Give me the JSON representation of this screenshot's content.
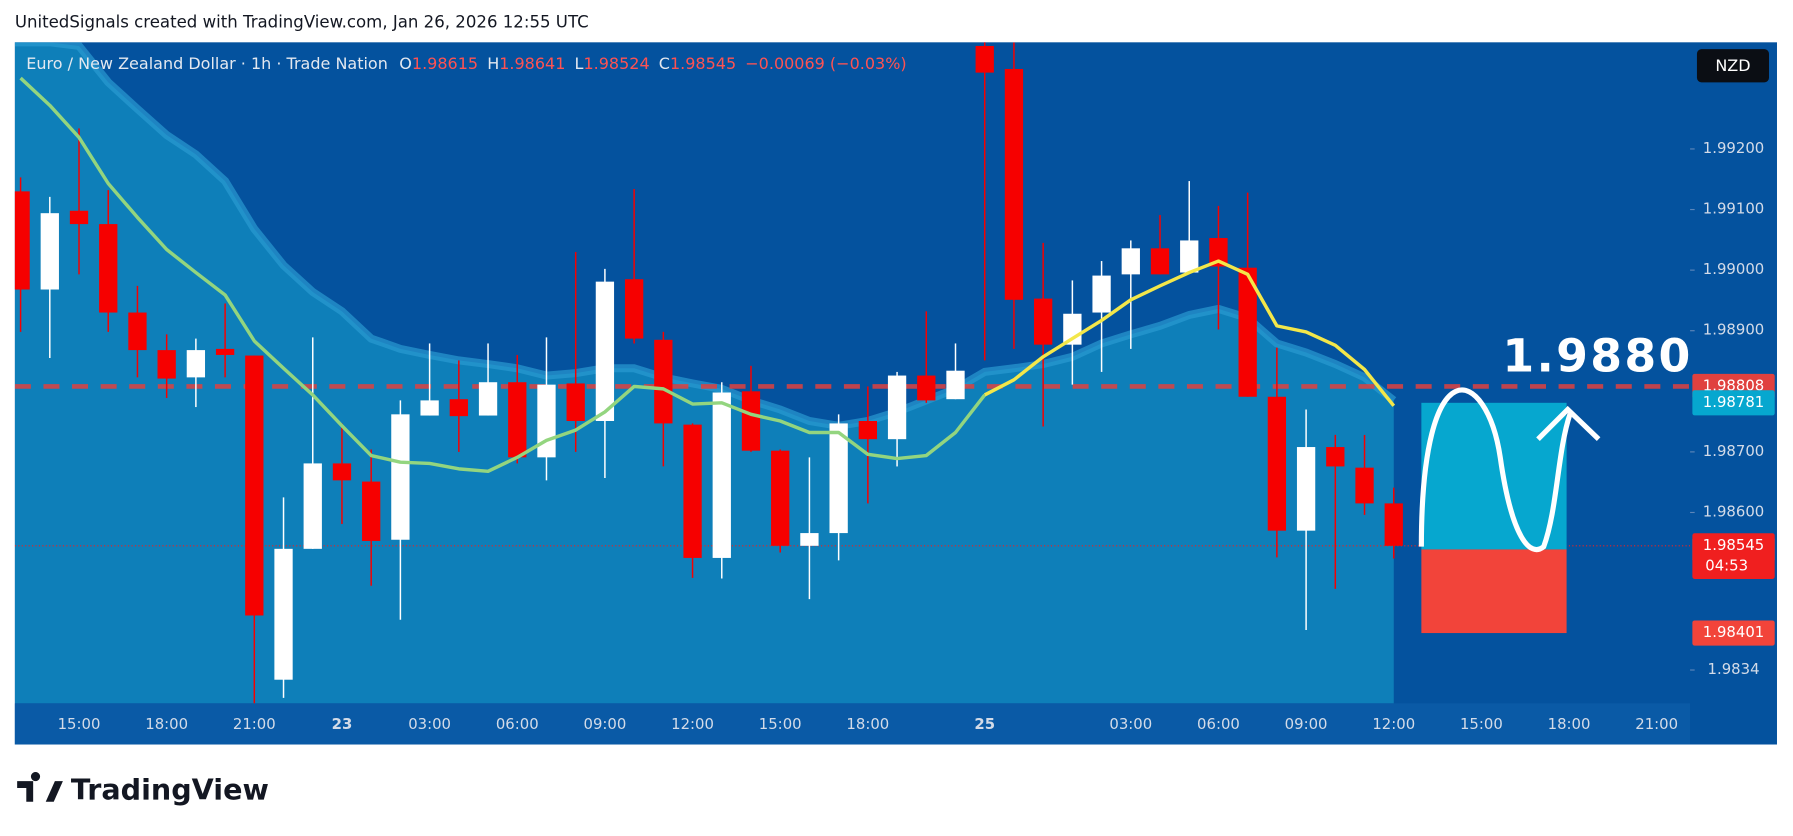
{
  "top_text": "UnitedSignals created with TradingView.com, Jan 26, 2026 12:55 UTC",
  "logo_text": "TradingView",
  "chart_data": {
    "type": "candlestick",
    "header": {
      "symbol": "Euro / New Zealand Dollar · 1h · Trade Nation",
      "ohlc": [
        {
          "label": "O",
          "value": "1.98615"
        },
        {
          "label": "H",
          "value": "1.98641"
        },
        {
          "label": "L",
          "value": "1.98524"
        },
        {
          "label": "C",
          "value": "1.98545"
        }
      ],
      "change": "−0.00069 (−0.03%)"
    },
    "currency": "NZD",
    "categories": [
      null,
      null,
      "15:00",
      null,
      null,
      "18:00",
      null,
      null,
      "21:00",
      null,
      null,
      "23",
      null,
      null,
      "03:00",
      null,
      null,
      "06:00",
      null,
      null,
      "09:00",
      null,
      null,
      "12:00",
      null,
      null,
      "15:00",
      null,
      null,
      "18:00",
      null,
      null,
      null,
      "25",
      null,
      null,
      null,
      null,
      "03:00",
      null,
      null,
      "06:00",
      null,
      null,
      "09:00",
      null,
      null,
      "12:00",
      null,
      null,
      "15:00",
      null,
      null,
      "18:00",
      null,
      null,
      "21:00",
      null
    ],
    "open": [
      1.9913,
      1.98968,
      1.99098,
      1.99076,
      1.9893,
      1.98868,
      1.98823,
      1.9887,
      1.98859,
      1.98324,
      1.9854,
      1.98681,
      1.98651,
      1.98555,
      1.9876,
      1.98787,
      1.9876,
      1.98815,
      1.98691,
      1.98813,
      1.98751,
      1.98985,
      1.98885,
      1.98745,
      1.98525,
      1.988,
      1.98702,
      1.98545,
      1.98566,
      1.98751,
      1.98721,
      1.98826,
      1.98787,
      1.9937,
      1.99332,
      1.98953,
      1.98877,
      1.9893,
      1.98993,
      1.99036,
      1.98996,
      1.99053,
      1.99004,
      1.98791,
      1.9857,
      1.98708,
      1.98674,
      1.98615,
      null,
      null,
      null,
      null,
      null,
      null,
      null,
      null,
      null,
      null
    ],
    "high": [
      1.99153,
      1.99121,
      1.99234,
      1.99132,
      1.98974,
      1.98894,
      1.98887,
      1.98945,
      1.98859,
      1.98625,
      1.98889,
      1.98747,
      1.98704,
      1.98785,
      1.98879,
      1.98851,
      1.98879,
      1.9886,
      1.98889,
      1.9903,
      1.99002,
      1.99134,
      1.98898,
      1.98747,
      1.98815,
      1.98842,
      1.98704,
      1.98691,
      1.98762,
      1.98808,
      1.98832,
      1.98932,
      1.98879,
      1.99389,
      1.99376,
      1.99045,
      1.98983,
      1.99015,
      1.99049,
      1.99091,
      1.99147,
      1.99106,
      1.99128,
      1.98872,
      1.9877,
      1.98728,
      1.98728,
      1.98641,
      null,
      null,
      null,
      null,
      null,
      null,
      null,
      null,
      null,
      null
    ],
    "low": [
      1.98898,
      1.98855,
      1.98993,
      1.98898,
      1.98823,
      1.98789,
      1.98774,
      1.98823,
      1.98285,
      1.98294,
      1.9854,
      1.98581,
      1.98479,
      1.98423,
      1.9876,
      1.987,
      1.9876,
      1.98681,
      1.98653,
      1.987,
      1.98657,
      1.98879,
      1.98676,
      1.98492,
      1.98491,
      1.987,
      1.98534,
      1.98457,
      1.98521,
      1.98615,
      1.98676,
      1.98781,
      1.98787,
      1.98851,
      1.9887,
      1.98742,
      1.98811,
      1.98832,
      1.9887,
      1.98993,
      1.98996,
      1.98902,
      1.98791,
      1.98526,
      1.98406,
      1.98474,
      1.98596,
      1.98524,
      null,
      null,
      null,
      null,
      null,
      null,
      null,
      null,
      null,
      null
    ],
    "close": [
      1.98968,
      1.99094,
      1.99076,
      1.9893,
      1.98868,
      1.98821,
      1.98868,
      1.9886,
      1.9843,
      1.9854,
      1.98681,
      1.98653,
      1.98553,
      1.98762,
      1.98785,
      1.98759,
      1.98815,
      1.98691,
      1.98811,
      1.98751,
      1.98981,
      1.98887,
      1.98747,
      1.98525,
      1.98798,
      1.98702,
      1.98545,
      1.98566,
      1.98747,
      1.98721,
      1.98826,
      1.98785,
      1.98834,
      1.99326,
      1.98951,
      1.98877,
      1.98928,
      1.98991,
      1.99036,
      1.98993,
      1.99049,
      1.99006,
      1.98791,
      1.9857,
      1.98708,
      1.98676,
      1.98615,
      1.98545,
      null,
      null,
      null,
      null,
      null,
      null,
      null,
      null,
      null,
      null
    ],
    "up_color": "#ffffff",
    "down_color": "#f60000",
    "lines": [
      {
        "color": "#93d57f",
        "values": [
          1.99317,
          1.99272,
          1.99219,
          1.99143,
          1.99087,
          1.99034,
          1.98996,
          1.98959,
          1.98883,
          1.98838,
          1.98794,
          1.98743,
          1.98694,
          1.98683,
          1.98681,
          1.98672,
          1.98668,
          1.98691,
          1.98719,
          1.98736,
          1.98766,
          1.98808,
          1.98804,
          1.98779,
          1.98781,
          1.98762,
          1.98751,
          1.98732,
          1.98732,
          1.98696,
          1.98689,
          1.98694,
          1.98732,
          1.98794,
          null,
          null,
          null,
          null,
          null,
          null,
          null,
          null,
          null,
          null,
          null,
          null,
          null,
          null,
          null,
          null,
          null,
          null,
          null,
          null,
          null,
          null,
          null,
          null
        ]
      },
      {
        "color": "#f3e74a",
        "values": [
          null,
          null,
          null,
          null,
          null,
          null,
          null,
          null,
          null,
          null,
          null,
          null,
          null,
          null,
          null,
          null,
          null,
          null,
          null,
          null,
          null,
          null,
          null,
          null,
          null,
          null,
          null,
          null,
          null,
          null,
          null,
          null,
          null,
          1.98794,
          1.98819,
          1.98857,
          1.98887,
          1.98917,
          1.98951,
          1.98974,
          1.98996,
          1.99015,
          1.98993,
          1.98908,
          1.98898,
          1.98876,
          1.98836,
          1.98776,
          null,
          null,
          null,
          null,
          null,
          null,
          null,
          null,
          null,
          null
        ]
      }
    ],
    "band": {
      "color": "#0e7fb9",
      "edge_color": "#2a9ad2",
      "values": [
        1.99376,
        1.99376,
        1.9937,
        1.9931,
        1.99266,
        1.99223,
        1.99191,
        1.99147,
        1.99068,
        1.99008,
        1.98964,
        1.98932,
        1.98887,
        1.9887,
        1.9886,
        1.98851,
        1.98845,
        1.98838,
        1.98826,
        1.9883,
        1.98838,
        1.98838,
        1.98823,
        1.98813,
        1.98804,
        1.98785,
        1.9877,
        1.98751,
        1.98743,
        1.98751,
        1.98766,
        1.98785,
        1.98804,
        1.98832,
        1.98838,
        1.98845,
        1.98857,
        1.98879,
        1.98894,
        1.98908,
        1.98926,
        1.98936,
        1.98921,
        1.98879,
        1.98864,
        1.98845,
        1.98823,
        1.98785,
        null,
        null,
        null,
        null,
        null,
        null,
        null,
        null,
        null,
        null
      ]
    },
    "ylim": [
      1.98285,
      1.99376
    ],
    "yticks": [
      {
        "value": 1.992,
        "label": "1.99200"
      },
      {
        "value": 1.991,
        "label": "1.99100"
      },
      {
        "value": 1.99,
        "label": "1.99000"
      },
      {
        "value": 1.989,
        "label": "1.98900"
      },
      {
        "value": 1.987,
        "label": "1.98700"
      },
      {
        "value": 1.986,
        "label": "1.98600"
      },
      1.9834
    ],
    "grid": false,
    "level_line": {
      "value": 1.98808,
      "color": "#e0413f"
    },
    "last_price": {
      "value": 1.98545,
      "countdown": "04:53",
      "color": "#f01f1f"
    },
    "position": {
      "target": 1.98781,
      "entry": 1.98539,
      "stop": 1.98401,
      "target_color": "#06a7cf",
      "entry_color": "#7d8490",
      "stop_color": "#f2443a"
    },
    "annotation": "1.9880"
  }
}
